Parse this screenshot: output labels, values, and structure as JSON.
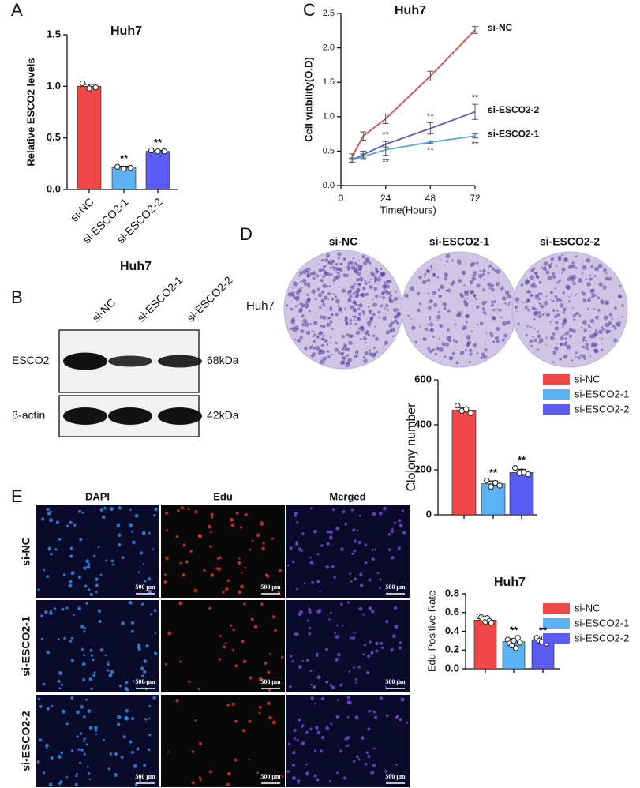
{
  "panel_letters": [
    "A",
    "B",
    "C",
    "D",
    "E"
  ],
  "chart_data": [
    {
      "type": "bar",
      "title": "Huh7",
      "ylabel": "Relative ESCO2 levels",
      "categories": [
        "si-NC",
        "si-ESCO2-1",
        "si-ESCO2-2"
      ],
      "values": [
        1.0,
        0.21,
        0.37
      ],
      "errors": [
        0.02,
        0.015,
        0.008
      ],
      "points": [
        [
          1.03,
          0.98,
          0.99
        ],
        [
          0.22,
          0.2,
          0.21
        ],
        [
          0.38,
          0.37,
          0.37
        ]
      ],
      "significance": [
        null,
        "**",
        "**"
      ],
      "colors": [
        "#f04848",
        "#5ab2f2",
        "#5a5cf2"
      ],
      "ylim": [
        0,
        1.5
      ],
      "yticks": [
        {
          "value": 0,
          "label": "0.0"
        },
        {
          "value": 0.5,
          "label": "0.5"
        },
        {
          "value": 1,
          "label": "1.0"
        },
        {
          "value": 1.5,
          "label": "1.5"
        }
      ],
      "legend": false
    },
    {
      "type": "line",
      "title": "Huh7",
      "xlabel": "Time(Hours)",
      "ylabel": "Cell viability(O.D)",
      "x": [
        6,
        12,
        24,
        48,
        72
      ],
      "series": [
        {
          "name": "si-NC",
          "color": "#e84a4a",
          "values": [
            0.42,
            0.72,
            0.97,
            1.59,
            2.26
          ],
          "errors": [
            0.04,
            0.06,
            0.07,
            0.07,
            0.05
          ],
          "significance": [
            null,
            null,
            null,
            null,
            null
          ]
        },
        {
          "name": "si-ESCO2-2",
          "color": "#5a58d8",
          "values": [
            0.37,
            0.45,
            0.6,
            0.83,
            1.07
          ],
          "errors": [
            0.03,
            0.05,
            0.04,
            0.08,
            0.11
          ],
          "significance": [
            null,
            null,
            "**",
            "**",
            "**"
          ]
        },
        {
          "name": "si-ESCO2-1",
          "color": "#5aa8e0",
          "values": [
            0.37,
            0.42,
            0.52,
            0.63,
            0.72
          ],
          "errors": [
            0.03,
            0.04,
            0.08,
            0.02,
            0.03
          ],
          "significance": [
            null,
            null,
            "**",
            "**",
            "**"
          ]
        }
      ],
      "xlim": [
        0,
        72
      ],
      "xticks": [
        0,
        24,
        48,
        72
      ],
      "ylim": [
        0,
        2.5
      ],
      "yticks": [
        {
          "value": 0,
          "label": "0.0"
        },
        {
          "value": 0.5,
          "label": "0.5"
        },
        {
          "value": 1,
          "label": "1.0"
        },
        {
          "value": 1.5,
          "label": "1.5"
        },
        {
          "value": 2,
          "label": "2.0"
        },
        {
          "value": 2.5,
          "label": "2.5"
        }
      ]
    },
    {
      "type": "bar",
      "ylabel": "Clolony number",
      "categories": [
        "si-NC",
        "si-ESCO2-1",
        "si-ESCO2-2"
      ],
      "values": [
        465,
        138,
        188
      ],
      "errors": [
        12,
        12,
        14
      ],
      "points": [
        [
          485,
          462,
          470,
          452
        ],
        [
          152,
          125,
          142,
          130
        ],
        [
          208,
          186,
          190,
          180
        ]
      ],
      "significance": [
        null,
        "**",
        "**"
      ],
      "colors": [
        "#f04848",
        "#5ab2f2",
        "#5a5cf2"
      ],
      "ylim": [
        0,
        600
      ],
      "yticks": [
        0,
        200,
        400,
        600
      ],
      "legend": true
    },
    {
      "type": "bar",
      "title": "Huh7",
      "ylabel": "Edu Positive Rate",
      "categories": [
        "si-NC",
        "si-ESCO2-1",
        "si-ESCO2-2"
      ],
      "values": [
        0.52,
        0.29,
        0.31
      ],
      "errors": [
        0.02,
        0.03,
        0.012
      ],
      "points": [
        [
          0.56,
          0.55,
          0.53,
          0.5,
          0.54,
          0.51,
          0.49
        ],
        [
          0.31,
          0.27,
          0.25,
          0.3,
          0.22,
          0.33,
          0.28
        ],
        [
          0.33,
          0.3,
          0.29,
          0.33,
          0.27,
          0.31
        ]
      ],
      "significance": [
        null,
        "**",
        "**"
      ],
      "colors": [
        "#f04848",
        "#5ab2f2",
        "#5a5cf2"
      ],
      "ylim": [
        0,
        0.8
      ],
      "yticks": [
        {
          "value": 0,
          "label": "0.0"
        },
        {
          "value": 0.2,
          "label": "0.2"
        },
        {
          "value": 0.4,
          "label": "0.4"
        },
        {
          "value": 0.6,
          "label": "0.6"
        },
        {
          "value": 0.8,
          "label": "0.8"
        }
      ],
      "legend": true
    }
  ],
  "blot": {
    "title": "Huh7",
    "lanes": [
      "si-NC",
      "si-ESCO2-1",
      "si-ESCO2-2"
    ],
    "proteins": [
      "ESCO2",
      "β-actin"
    ],
    "sizes": [
      "68kDa",
      "42kDa"
    ]
  },
  "colony": {
    "columns": [
      "si-NC",
      "si-ESCO2-1",
      "si-ESCO2-2"
    ],
    "row": "Huh7"
  },
  "edu_images": {
    "columns": [
      "DAPI",
      "Edu",
      "Merged"
    ],
    "rows": [
      "si-NC",
      "si-ESCO2-1",
      "si-ESCO2-2"
    ],
    "scale_bar": "500 μm"
  }
}
